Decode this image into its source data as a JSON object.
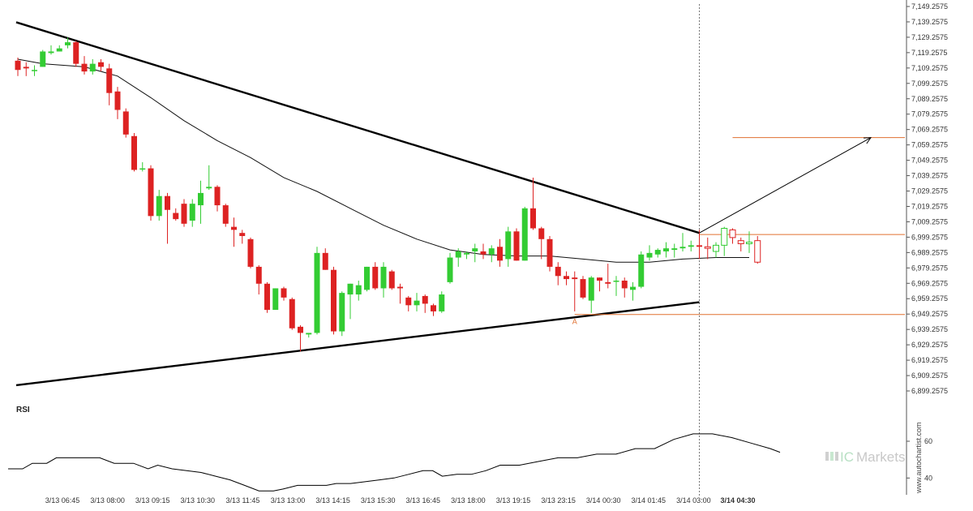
{
  "chart_data": {
    "type": "candlestick",
    "indicator": "RSI",
    "colors": {
      "up": "#33cc33",
      "down": "#dd2222",
      "ma": "#111111",
      "trendline": "#000000",
      "level": "#e07030",
      "arrow": "#000000",
      "rsi": "#000000"
    },
    "y_ticks": [
      "7,149.2575",
      "7,139.2575",
      "7,129.2575",
      "7,119.2575",
      "7,109.2575",
      "7,099.2575",
      "7,089.2575",
      "7,079.2575",
      "7,069.2575",
      "7,059.2575",
      "7,049.2575",
      "7,039.2575",
      "7,029.2575",
      "7,019.2575",
      "7,009.2575",
      "6,999.2575",
      "6,989.2575",
      "6,979.2575",
      "6,969.2575",
      "6,959.2575",
      "6,949.2575",
      "6,939.2575",
      "6,929.2575",
      "6,919.2575",
      "6,909.2575",
      "6,899.2575"
    ],
    "ylim": [
      6899.2575,
      7149.2575
    ],
    "x_ticks": [
      "3/13 06:45",
      "3/13 08:00",
      "3/13 09:15",
      "3/13 10:30",
      "3/13 11:45",
      "3/13 13:00",
      "3/13 14:15",
      "3/13 15:30",
      "3/13 16:45",
      "3/13 18:00",
      "3/13 19:15",
      "3/13 23:15",
      "3/14 00:30",
      "3/14 01:45",
      "3/14 03:00",
      "3/14 04:30"
    ],
    "x_tick_bold_index": 15,
    "rsi_label": "RSI",
    "rsi_ticks": [
      "60",
      "40"
    ],
    "rsi_range": [
      30,
      75
    ],
    "annotation_label": "A",
    "watermark": "www.autochartist.com",
    "logo_ic": "IC",
    "logo_markets": "Markets",
    "candles": [
      [
        7114,
        7116,
        7104,
        7108
      ],
      [
        7110,
        7113,
        7104,
        7109
      ],
      [
        7108,
        7111,
        7104,
        7108
      ],
      [
        7110,
        7121,
        7110,
        7120
      ],
      [
        7119,
        7124,
        7118,
        7120
      ],
      [
        7120,
        7124,
        7120,
        7122
      ],
      [
        7124,
        7129,
        7122,
        7126
      ],
      [
        7126,
        7127,
        7110,
        7112
      ],
      [
        7112,
        7117,
        7105,
        7107
      ],
      [
        7107,
        7115,
        7105,
        7112
      ],
      [
        7113,
        7115,
        7107,
        7110
      ],
      [
        7109,
        7112,
        7085,
        7093
      ],
      [
        7094,
        7097,
        7076,
        7082
      ],
      [
        7081,
        7083,
        7064,
        7066
      ],
      [
        7065,
        7067,
        7042,
        7043
      ],
      [
        7044,
        7048,
        7042,
        7044
      ],
      [
        7044,
        7046,
        7010,
        7013
      ],
      [
        7013,
        7030,
        7010,
        7026
      ],
      [
        7026,
        7028,
        6995,
        7017
      ],
      [
        7015,
        7018,
        7010,
        7011
      ],
      [
        7021,
        7024,
        7006,
        7008
      ],
      [
        7010,
        7024,
        7006,
        7021
      ],
      [
        7020,
        7036,
        7008,
        7028
      ],
      [
        7031,
        7046,
        7030,
        7032
      ],
      [
        7032,
        7033,
        7016,
        7020
      ],
      [
        7020,
        7021,
        7006,
        7008
      ],
      [
        7006,
        7012,
        6993,
        7004
      ],
      [
        7002,
        7004,
        6995,
        7000
      ],
      [
        6998,
        6999,
        6979,
        6980
      ],
      [
        6980,
        6981,
        6962,
        6969
      ],
      [
        6969,
        6970,
        6950,
        6952
      ],
      [
        6952,
        6966,
        6952,
        6966
      ],
      [
        6966,
        6967,
        6958,
        6960
      ],
      [
        6959,
        6960,
        6939,
        6940
      ],
      [
        6941,
        6942,
        6925,
        6937
      ],
      [
        6936,
        6937,
        6934,
        6937
      ],
      [
        6937,
        6993,
        6936,
        6989
      ],
      [
        6989,
        6992,
        6978,
        6978
      ],
      [
        6978,
        6980,
        6936,
        6938
      ],
      [
        6938,
        6964,
        6935,
        6963
      ],
      [
        6962,
        6969,
        6946,
        6969
      ],
      [
        6962,
        6971,
        6958,
        6968
      ],
      [
        6965,
        6980,
        6964,
        6980
      ],
      [
        6980,
        6983,
        6965,
        6966
      ],
      [
        6966,
        6983,
        6960,
        6980
      ],
      [
        6977,
        6978,
        6965,
        6966
      ],
      [
        6967,
        6969,
        6956,
        6966
      ],
      [
        6960,
        6961,
        6951,
        6955
      ],
      [
        6955,
        6963,
        6951,
        6958
      ],
      [
        6961,
        6962,
        6950,
        6956
      ],
      [
        6955,
        6956,
        6948,
        6951
      ],
      [
        6951,
        6964,
        6950,
        6962
      ],
      [
        6970,
        6989,
        6969,
        6986
      ],
      [
        6986,
        6992,
        6980,
        6990
      ],
      [
        6988,
        6990,
        6985,
        6989
      ],
      [
        6990,
        6995,
        6983,
        6992
      ],
      [
        6990,
        6995,
        6985,
        6988
      ],
      [
        6988,
        6994,
        6983,
        6992
      ],
      [
        6993,
        6998,
        6980,
        6984
      ],
      [
        6985,
        7006,
        6980,
        7003
      ],
      [
        7003,
        7005,
        6984,
        6984
      ],
      [
        6984,
        7019,
        6984,
        7018
      ],
      [
        7018,
        7038,
        7004,
        7005
      ],
      [
        7005,
        7006,
        6985,
        6998
      ],
      [
        6998,
        7000,
        6977,
        6980
      ],
      [
        6980,
        6983,
        6968,
        6974
      ],
      [
        6974,
        6977,
        6968,
        6972
      ],
      [
        6973,
        6977,
        6951,
        6972
      ],
      [
        6972,
        6974,
        6959,
        6960
      ],
      [
        6958,
        6974,
        6950,
        6973
      ],
      [
        6973,
        6973,
        6964,
        6971
      ],
      [
        6970,
        6982,
        6966,
        6969
      ],
      [
        6971,
        6974,
        6961,
        6971
      ],
      [
        6971,
        6973,
        6960,
        6966
      ],
      [
        6965,
        6970,
        6958,
        6967
      ],
      [
        6967,
        6990,
        6966,
        6988
      ],
      [
        6986,
        6994,
        6984,
        6989
      ],
      [
        6988,
        6992,
        6986,
        6991
      ],
      [
        6990,
        6996,
        6986,
        6992
      ],
      [
        6991,
        6995,
        6986,
        6992
      ],
      [
        6992,
        7002,
        6990,
        6993
      ],
      [
        6993,
        6997,
        6990,
        6994
      ],
      [
        6994,
        7004,
        6985,
        6993
      ],
      [
        6993,
        6999,
        6985,
        6992
      ],
      [
        6990,
        6996,
        6986,
        6994
      ],
      [
        6994,
        7006,
        6987,
        7005
      ],
      [
        7004,
        7005,
        6995,
        6999
      ],
      [
        6997,
        6999,
        6990,
        6995
      ],
      [
        6995,
        7003,
        6989,
        6996
      ],
      [
        6997,
        7000,
        6982,
        6983
      ]
    ],
    "ma": [
      [
        0,
        7115
      ],
      [
        3,
        7112
      ],
      [
        8,
        7110
      ],
      [
        12,
        7104
      ],
      [
        16,
        7090
      ],
      [
        20,
        7075
      ],
      [
        24,
        7062
      ],
      [
        28,
        7051
      ],
      [
        32,
        7038
      ],
      [
        36,
        7029
      ],
      [
        40,
        7018
      ],
      [
        44,
        7007
      ],
      [
        48,
        6998
      ],
      [
        52,
        6991
      ],
      [
        56,
        6988
      ],
      [
        60,
        6987
      ],
      [
        64,
        6987
      ],
      [
        68,
        6985
      ],
      [
        72,
        6983
      ],
      [
        76,
        6983
      ],
      [
        80,
        6985
      ],
      [
        84,
        6986
      ],
      [
        88,
        6986
      ]
    ],
    "trendline_upper": [
      [
        -0.2,
        7139
      ],
      [
        82,
        7002
      ]
    ],
    "trendline_lower": [
      [
        -0.2,
        6903
      ],
      [
        82,
        6957
      ]
    ],
    "target_level": 7064,
    "target_level_start": 86,
    "breakout_level": 7001,
    "breakout_level_start": 82,
    "support_level": 6949,
    "support_level_start": 67,
    "arrow": {
      "from": [
        82,
        7002
      ],
      "to": [
        100,
        7064
      ]
    },
    "rsi": [
      [
        0,
        45
      ],
      [
        3,
        45
      ],
      [
        5,
        48
      ],
      [
        8,
        48
      ],
      [
        10,
        51
      ],
      [
        14,
        51
      ],
      [
        19,
        51
      ],
      [
        22,
        48
      ],
      [
        26,
        48
      ],
      [
        29,
        45
      ],
      [
        31,
        47
      ],
      [
        34,
        45
      ],
      [
        37,
        44
      ],
      [
        40,
        43
      ],
      [
        43,
        41
      ],
      [
        46,
        39
      ],
      [
        49,
        36
      ],
      [
        52,
        33
      ],
      [
        55,
        33
      ],
      [
        57,
        34
      ],
      [
        60,
        36
      ],
      [
        63,
        36
      ],
      [
        66,
        36
      ],
      [
        68,
        37
      ],
      [
        71,
        37
      ],
      [
        74,
        38
      ],
      [
        77,
        39
      ],
      [
        80,
        40
      ],
      [
        83,
        42
      ],
      [
        86,
        44
      ],
      [
        88,
        44
      ],
      [
        90,
        41
      ],
      [
        93,
        42
      ],
      [
        96,
        42
      ],
      [
        99,
        44
      ],
      [
        102,
        47
      ],
      [
        106,
        47
      ],
      [
        110,
        49
      ],
      [
        114,
        51
      ],
      [
        118,
        51
      ],
      [
        122,
        53
      ],
      [
        126,
        53
      ],
      [
        130,
        56
      ],
      [
        134,
        56
      ],
      [
        138,
        61
      ],
      [
        142,
        64
      ],
      [
        146,
        64
      ],
      [
        150,
        62
      ],
      [
        154,
        59
      ],
      [
        158,
        56
      ],
      [
        160,
        54
      ]
    ]
  }
}
